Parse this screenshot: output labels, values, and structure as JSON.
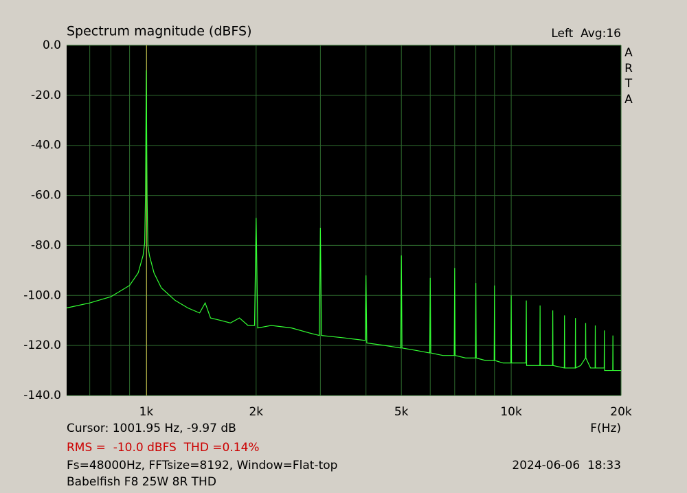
{
  "chart_data": {
    "type": "line",
    "title": "Spectrum magnitude (dBFS)",
    "channel": "Left  Avg:16",
    "brand": "ARTA",
    "x_label": "F(Hz)",
    "cursor_text": "Cursor: 1001.95 Hz, -9.97 dB",
    "cursor": 1001.95,
    "rms_text": "RMS =  -10.0 dBFS  THD =0.14%",
    "settings_text": "Fs=48000Hz, FFTsize=8192, Window=Flat-top",
    "date_text": "2024-06-06  18:33",
    "caption": "Babelfish F8 25W 8R THD",
    "x_log": true,
    "grid": true,
    "xlim": [
      605,
      20000
    ],
    "ylim": [
      -140,
      0
    ],
    "xticks": [
      {
        "value": 1000,
        "label": "1k"
      },
      {
        "value": 2000,
        "label": "2k"
      },
      {
        "value": 5000,
        "label": "5k"
      },
      {
        "value": 10000,
        "label": "10k"
      },
      {
        "value": 20000,
        "label": "20k"
      }
    ],
    "xgrid": [
      700,
      800,
      900,
      1000,
      2000,
      3000,
      4000,
      5000,
      6000,
      7000,
      8000,
      9000,
      10000,
      20000
    ],
    "yticks": [
      {
        "value": 0,
        "label": "0.0"
      },
      {
        "value": -20,
        "label": "-20.0"
      },
      {
        "value": -40,
        "label": "-40.0"
      },
      {
        "value": -60,
        "label": "-60.0"
      },
      {
        "value": -80,
        "label": "-80.0"
      },
      {
        "value": -100,
        "label": "-100.0"
      },
      {
        "value": -120,
        "label": "-120.0"
      },
      {
        "value": -140,
        "label": "-140.0"
      }
    ],
    "x": [
      605,
      700,
      800,
      900,
      950,
      980,
      990,
      995,
      1000,
      1005,
      1010,
      1020,
      1050,
      1100,
      1200,
      1300,
      1400,
      1450,
      1500,
      1600,
      1700,
      1800,
      1900,
      1980,
      2000,
      2020,
      2200,
      2500,
      2800,
      2980,
      3000,
      3020,
      3500,
      3980,
      4000,
      4020,
      4500,
      4980,
      5000,
      5020,
      5500,
      5980,
      6000,
      6020,
      6500,
      6980,
      7000,
      7020,
      7500,
      7980,
      8000,
      8020,
      8500,
      8980,
      9000,
      9020,
      9500,
      9980,
      10000,
      10020,
      10980,
      11000,
      11020,
      11980,
      12000,
      12020,
      12980,
      13000,
      13020,
      13980,
      14000,
      14020,
      14980,
      15000,
      15020,
      15500,
      15980,
      16000,
      16020,
      16500,
      16980,
      17000,
      17020,
      17980,
      18000,
      18020,
      18980,
      19000,
      19020,
      20000
    ],
    "series": [
      {
        "name": "Left",
        "color": "#33ff33",
        "values": [
          -105,
          -103,
          -100.5,
          -96,
          -91,
          -84,
          -79,
          -60,
          -10,
          -60,
          -80,
          -84,
          -91,
          -97,
          -102,
          -105,
          -107,
          -103,
          -109,
          -110,
          -111,
          -109,
          -112,
          -112,
          -69,
          -113,
          -112,
          -113,
          -115,
          -116,
          -73,
          -116,
          -117,
          -118,
          -92,
          -119,
          -120,
          -121,
          -84,
          -121,
          -122,
          -123,
          -93,
          -123,
          -124,
          -124,
          -89,
          -124,
          -125,
          -125,
          -95,
          -125,
          -126,
          -126,
          -96,
          -126,
          -127,
          -127,
          -100,
          -127,
          -127,
          -102,
          -128,
          -128,
          -104,
          -128,
          -128,
          -106,
          -128,
          -129,
          -108,
          -129,
          -129,
          -109,
          -129,
          -128,
          -125,
          -111,
          -125,
          -129,
          -129,
          -112,
          -129,
          -129,
          -114,
          -130,
          -130,
          -116,
          -130,
          -130
        ]
      }
    ]
  }
}
